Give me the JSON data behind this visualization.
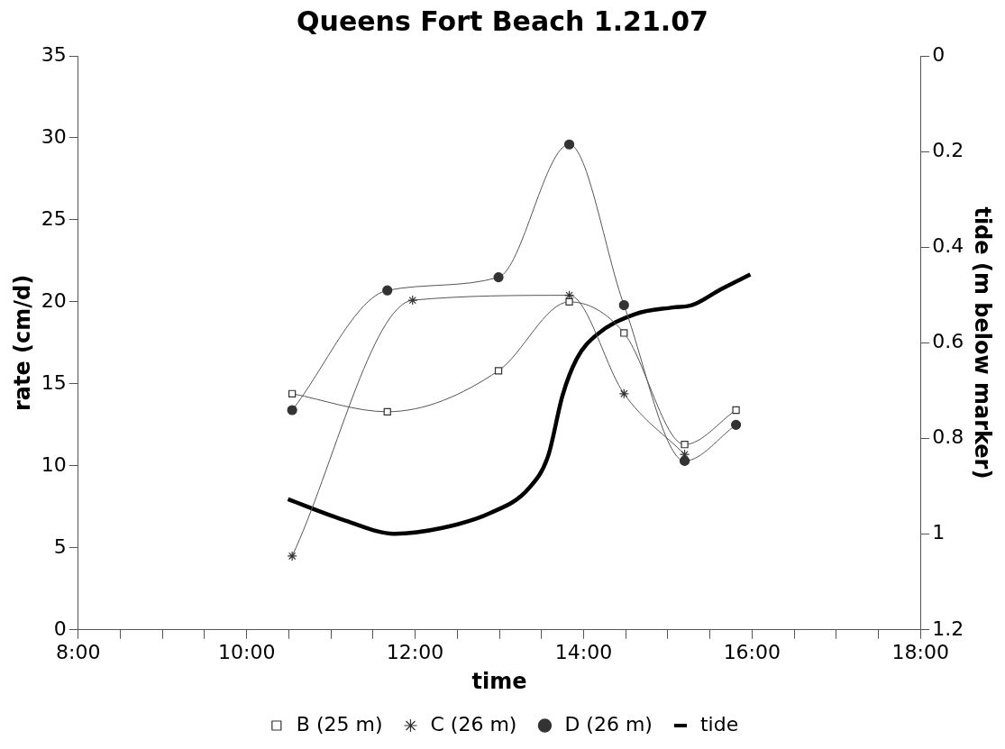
{
  "chart_data": {
    "type": "line",
    "title": "Queens Fort Beach 1.21.07",
    "xlabel": "time",
    "ylabel": "rate (cm/d)",
    "y2label": "tide (m below marker)",
    "xlim": [
      8,
      18
    ],
    "xticks": [
      {
        "value": 8,
        "label": "8:00"
      },
      {
        "value": 8.5,
        "label": null
      },
      {
        "value": 9,
        "label": null
      },
      {
        "value": 9.5,
        "label": null
      },
      {
        "value": 10,
        "label": "10:00"
      },
      {
        "value": 10.5,
        "label": null
      },
      {
        "value": 11,
        "label": null
      },
      {
        "value": 11.5,
        "label": null
      },
      {
        "value": 12,
        "label": "12:00"
      },
      {
        "value": 12.5,
        "label": null
      },
      {
        "value": 13,
        "label": null
      },
      {
        "value": 13.5,
        "label": null
      },
      {
        "value": 14,
        "label": "14:00"
      },
      {
        "value": 14.5,
        "label": null
      },
      {
        "value": 15,
        "label": null
      },
      {
        "value": 15.5,
        "label": null
      },
      {
        "value": 16,
        "label": "16:00"
      },
      {
        "value": 16.5,
        "label": null
      },
      {
        "value": 17,
        "label": null
      },
      {
        "value": 17.5,
        "label": null
      },
      {
        "value": 18,
        "label": "18:00"
      }
    ],
    "ylim": [
      0,
      35
    ],
    "yticks": [
      0,
      5,
      10,
      15,
      20,
      25,
      30,
      35
    ],
    "y2lim": [
      1.2,
      0
    ],
    "y2ticks": [
      0,
      0.2,
      0.4,
      0.6,
      0.8,
      1,
      1.2
    ],
    "grid": false,
    "legend": "bottom",
    "series": [
      {
        "name": "B (25 m)",
        "color": "#555555",
        "marker": "square",
        "x": [
          10.54,
          11.67,
          12.99,
          13.83,
          14.48,
          15.2,
          15.81
        ],
        "values": [
          14.4,
          13.3,
          15.8,
          20.0,
          18.1,
          11.3,
          13.4
        ]
      },
      {
        "name": "C (26 m)",
        "color": "#555555",
        "marker": "cross",
        "x": [
          10.54,
          11.97,
          13.83,
          14.48,
          15.2
        ],
        "values": [
          4.5,
          20.1,
          20.4,
          14.4,
          10.7
        ]
      },
      {
        "name": "D (26 m)",
        "color": "#555555",
        "marker": "circle",
        "x": [
          10.54,
          11.67,
          12.99,
          13.83,
          14.48,
          15.2,
          15.81
        ],
        "values": [
          13.4,
          20.7,
          21.5,
          29.6,
          19.8,
          10.3,
          12.5
        ]
      },
      {
        "name": "tide",
        "color": "#000000",
        "marker": "none",
        "axis": "y2",
        "x": [
          10.49,
          11.18,
          11.75,
          12.32,
          12.89,
          13.35,
          13.58,
          13.75,
          13.92,
          14.15,
          14.61,
          15.06,
          15.29,
          15.63,
          15.98
        ],
        "values": [
          0.927,
          0.972,
          0.999,
          0.987,
          0.956,
          0.904,
          0.836,
          0.71,
          0.633,
          0.584,
          0.54,
          0.526,
          0.521,
          0.488,
          0.457
        ]
      }
    ]
  }
}
